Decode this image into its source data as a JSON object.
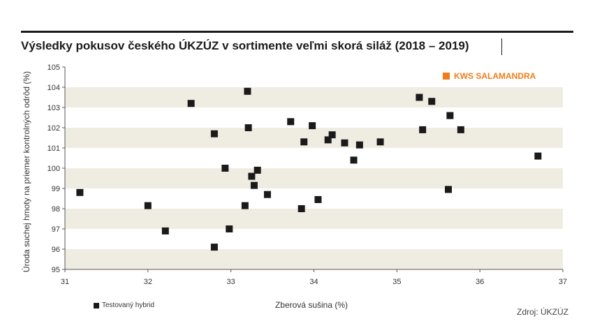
{
  "title": "Výsledky pokusov českého ÚKZÚZ v sortimente veľmi skorá siláž (2018 – 2019)",
  "source": "Zdroj: ÚKZÚZ",
  "legend": {
    "highlight_label": "KWS SALAMANDRA",
    "tested_label": "Testovaný hybrid"
  },
  "colors": {
    "accent": "#f07d1a",
    "marker": "#1a1a1a",
    "band": "#efede2"
  },
  "chart_data": {
    "type": "scatter",
    "xlabel": "Zberová sušina (%)",
    "ylabel": "Úroda suchej hmoty na priemer kontrolných odrôd (%)",
    "xlim": [
      31,
      37
    ],
    "ylim": [
      95,
      105
    ],
    "xticks": [
      "31",
      "32",
      "33",
      "34",
      "35",
      "36",
      "37"
    ],
    "yticks": [
      "95",
      "96",
      "97",
      "98",
      "99",
      "100",
      "101",
      "102",
      "103",
      "104",
      "105"
    ],
    "grid": "alternating horizontal bands",
    "legend_position": "top-right",
    "series": [
      {
        "name": "Testovaný hybrid",
        "points": [
          {
            "x": 31.18,
            "y": 98.8
          },
          {
            "x": 32.0,
            "y": 98.15
          },
          {
            "x": 32.21,
            "y": 96.9
          },
          {
            "x": 32.52,
            "y": 103.2
          },
          {
            "x": 32.8,
            "y": 101.7
          },
          {
            "x": 32.8,
            "y": 96.1
          },
          {
            "x": 32.93,
            "y": 100.0
          },
          {
            "x": 32.98,
            "y": 97.0
          },
          {
            "x": 33.17,
            "y": 98.15
          },
          {
            "x": 33.2,
            "y": 103.8
          },
          {
            "x": 33.21,
            "y": 102.0
          },
          {
            "x": 33.25,
            "y": 99.6
          },
          {
            "x": 33.28,
            "y": 99.15
          },
          {
            "x": 33.32,
            "y": 99.9
          },
          {
            "x": 33.44,
            "y": 98.7
          },
          {
            "x": 33.72,
            "y": 102.3
          },
          {
            "x": 33.85,
            "y": 98.0
          },
          {
            "x": 33.88,
            "y": 101.3
          },
          {
            "x": 33.98,
            "y": 102.1
          },
          {
            "x": 34.05,
            "y": 98.45
          },
          {
            "x": 34.17,
            "y": 101.4
          },
          {
            "x": 34.22,
            "y": 101.65
          },
          {
            "x": 34.37,
            "y": 101.25
          },
          {
            "x": 34.48,
            "y": 100.4
          },
          {
            "x": 34.55,
            "y": 101.15
          },
          {
            "x": 34.8,
            "y": 101.3
          },
          {
            "x": 35.27,
            "y": 103.5
          },
          {
            "x": 35.31,
            "y": 101.9
          },
          {
            "x": 35.42,
            "y": 103.3
          },
          {
            "x": 35.62,
            "y": 98.95
          },
          {
            "x": 35.64,
            "y": 102.6
          },
          {
            "x": 35.77,
            "y": 101.9
          },
          {
            "x": 36.7,
            "y": 100.6
          }
        ]
      }
    ]
  }
}
